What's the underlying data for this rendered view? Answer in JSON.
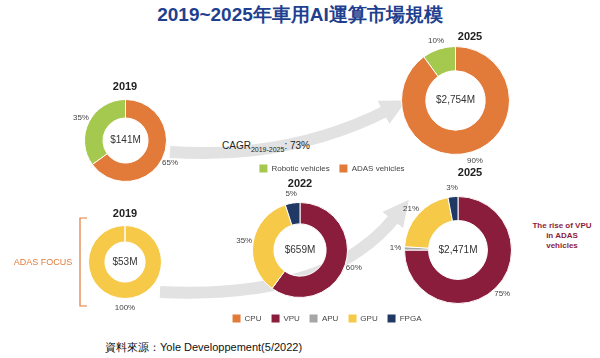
{
  "title": "2019~2025年車用AI運算市場規模",
  "source": "資料來源：Yole Developpement(5/2022)",
  "annotations": [
    {
      "text": "CAGR",
      "subscript": "2019-2025",
      "suffix": ": 73%"
    },
    {
      "text": "ADAS FOCUS"
    },
    {
      "text": "The rise of VPU in ADAS vehicles"
    }
  ],
  "chart_data": [
    {
      "type": "doughnut",
      "title": "2019",
      "total": 141,
      "total_label": "$141M",
      "categories": [
        "Robotic vehicles",
        "ADAS vehicles"
      ],
      "values": [
        35,
        65
      ],
      "value_labels": [
        "35%",
        "65%"
      ],
      "colors": [
        "#a5c84e",
        "#e27b3a"
      ],
      "data_labels": true,
      "legend": "bottom"
    },
    {
      "type": "doughnut",
      "title": "2025",
      "total": 2754,
      "total_label": "$2,754M",
      "categories": [
        "Robotic vehicles",
        "ADAS vehicles"
      ],
      "values": [
        10,
        90
      ],
      "value_labels": [
        "10%",
        "90%"
      ],
      "colors": [
        "#a5c84e",
        "#e27b3a"
      ],
      "data_labels": true
    },
    {
      "type": "doughnut",
      "title": "2019",
      "total": 53,
      "total_label": "$53M",
      "categories": [
        "CPU",
        "VPU",
        "APU",
        "GPU",
        "FPGA"
      ],
      "values": [
        0,
        0,
        0,
        100,
        0
      ],
      "value_labels": [
        null,
        null,
        null,
        "100%",
        null
      ],
      "colors": [
        "#e27b3a",
        "#8b1d3c",
        "#a6a6a6",
        "#f7c948",
        "#1f3864"
      ],
      "data_labels": true,
      "legend": "bottom"
    },
    {
      "type": "doughnut",
      "title": "2022",
      "total": 659,
      "total_label": "$659M",
      "categories": [
        "CPU",
        "VPU",
        "APU",
        "GPU",
        "FPGA"
      ],
      "values": [
        0,
        60,
        0,
        35,
        5
      ],
      "value_labels": [
        null,
        "60%",
        null,
        "35%",
        "5%"
      ],
      "colors": [
        "#e27b3a",
        "#8b1d3c",
        "#a6a6a6",
        "#f7c948",
        "#1f3864"
      ],
      "data_labels": true
    },
    {
      "type": "doughnut",
      "title": "2025",
      "total": 2471,
      "total_label": "$2,471M",
      "categories": [
        "CPU",
        "VPU",
        "APU",
        "GPU",
        "FPGA"
      ],
      "values": [
        0,
        75,
        1,
        21,
        3
      ],
      "value_labels": [
        null,
        "75%",
        "1%",
        "21%",
        "3%"
      ],
      "colors": [
        "#e27b3a",
        "#8b1d3c",
        "#a6a6a6",
        "#f7c948",
        "#1f3864"
      ],
      "data_labels": true
    }
  ]
}
